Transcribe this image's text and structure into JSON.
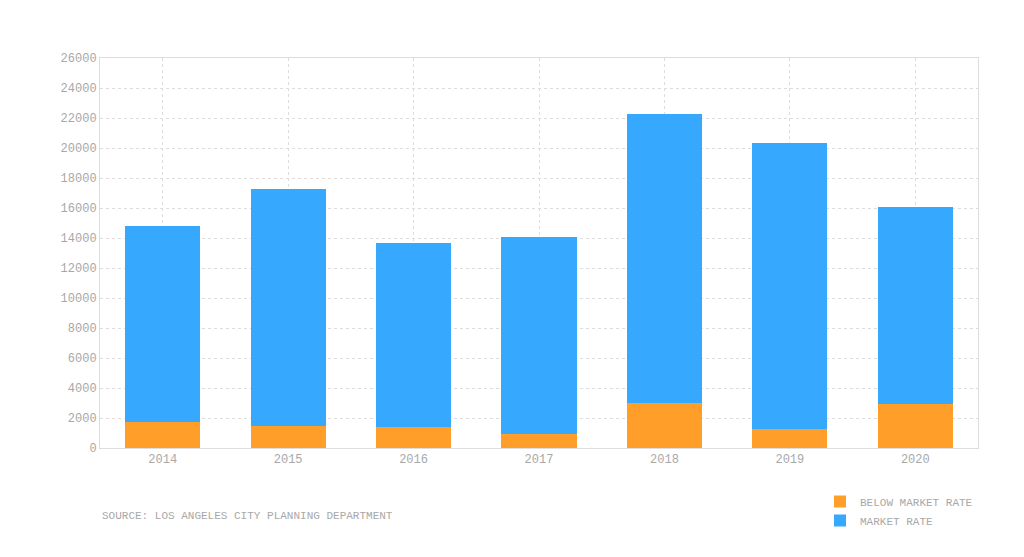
{
  "chart_data": {
    "type": "bar",
    "stacked": true,
    "grid": true,
    "legend": "bottom right",
    "categories": [
      "2014",
      "2015",
      "2016",
      "2017",
      "2018",
      "2019",
      "2020"
    ],
    "series": [
      {
        "name": "BELOW MARKET RATE",
        "color": "#ff9f2a",
        "values": [
          1750,
          1450,
          1400,
          950,
          3000,
          1300,
          2950
        ]
      },
      {
        "name": "MARKET RATE",
        "color": "#36a9fe",
        "values": [
          13050,
          15850,
          12300,
          13100,
          19300,
          19050,
          13150
        ]
      }
    ],
    "ylim": [
      0,
      26000
    ],
    "yticks": [
      0,
      2000,
      4000,
      6000,
      8000,
      10000,
      12000,
      14000,
      16000,
      18000,
      20000,
      22000,
      24000,
      26000
    ],
    "annotations": [
      "SOURCE: LOS ANGELES CITY PLANNING DEPARTMENT"
    ]
  }
}
